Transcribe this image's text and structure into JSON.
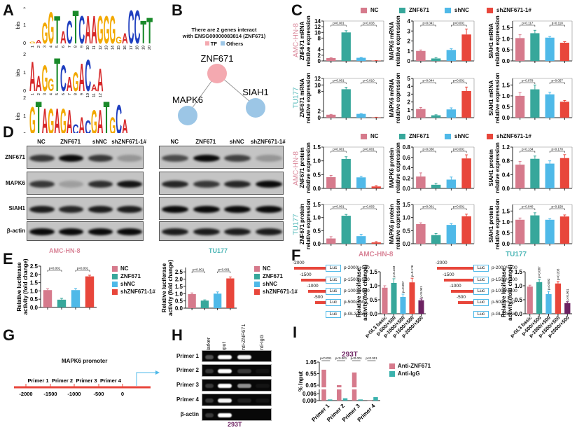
{
  "panels": {
    "a": "A",
    "b": "B",
    "c": "C",
    "d": "D",
    "e": "E",
    "f": "F",
    "g": "G",
    "h": "H",
    "i": "I"
  },
  "colors": {
    "NC": "#d67a8c",
    "ZNF671": "#37a79b",
    "shNC": "#4fb9e8",
    "shZNF671": "#e8463b",
    "purple": "#6d2262",
    "pink_text": "#d98598",
    "teal_text": "#4cb6b6",
    "igg": "#3bb2ad"
  },
  "motifs": [
    {
      "ylabel": "bits",
      "ticks": [
        "0",
        "1",
        "2"
      ],
      "letters": [
        "G",
        "A",
        "G",
        "G",
        "T",
        "A",
        "C",
        "T",
        "C",
        "A",
        "A",
        "G",
        "G",
        "G",
        "G",
        "A",
        "C",
        "C",
        "T",
        "T"
      ],
      "bits": [
        0.1,
        0.2,
        1.2,
        1.8,
        1.6,
        0.7,
        1.3,
        1.9,
        1.6,
        1.6,
        1.6,
        1.6,
        1.6,
        1.6,
        0.4,
        0.6,
        1.9,
        1.9,
        1.3,
        1.5
      ]
    },
    {
      "ylabel": "bits",
      "ticks": [
        "0",
        "1",
        "2"
      ],
      "letters": [
        "A",
        "A",
        "G",
        "G",
        "T",
        "C",
        "A",
        "G",
        "A",
        "C",
        "A",
        "A"
      ],
      "bits": [
        1.7,
        0.9,
        1.5,
        0.7,
        1.9,
        1.5,
        0.8,
        1.1,
        1.6,
        1.8,
        0.4,
        1.3
      ]
    },
    {
      "ylabel": "bits",
      "ticks": [
        "0",
        "1",
        "2"
      ],
      "letters": [
        "G",
        "T",
        "A",
        "G",
        "A",
        "G",
        "A",
        "C",
        "A",
        "C",
        "G",
        "A",
        "T",
        "G",
        "C",
        "A"
      ],
      "bits": [
        1.6,
        1.9,
        1.5,
        1.5,
        1.5,
        1.5,
        1.4,
        0.6,
        1.0,
        0.8,
        1.4,
        1.4,
        1.9,
        1.0,
        1.7,
        0.9
      ]
    }
  ],
  "network": {
    "title1": "There are 2 genes interact",
    "title2": "with ENSG00000083814 (ZNF671)",
    "legend_tf": "TF",
    "legend_others": "Others",
    "tf_color": "#f4a9b0",
    "other_color": "#9cc6e6",
    "nodes": [
      "ZNF671",
      "MAPK6",
      "SIAH1"
    ]
  },
  "groups": [
    "NC",
    "ZNF671",
    "shNC",
    "shZNF671-1#"
  ],
  "cell_lines": {
    "amc": "AMC-HN-8",
    "tu": "TU177"
  },
  "blot": {
    "lanes": [
      "NC",
      "ZNF671",
      "shNC",
      "shZNF671-1#"
    ],
    "rows": [
      "ZNF671",
      "MAPK6",
      "SIAH1",
      "β-actin"
    ],
    "amc_intensity": [
      [
        0.75,
        1.0,
        0.75,
        0.25
      ],
      [
        0.75,
        0.2,
        0.8,
        0.95
      ],
      [
        0.9,
        0.85,
        0.9,
        0.9
      ],
      [
        1.0,
        1.0,
        1.0,
        1.0
      ]
    ],
    "tu_intensity": [
      [
        0.65,
        1.0,
        0.7,
        0.25
      ],
      [
        0.85,
        0.75,
        0.85,
        1.0
      ],
      [
        1.0,
        1.0,
        1.0,
        1.0
      ],
      [
        0.9,
        0.9,
        0.9,
        0.9
      ]
    ]
  },
  "luc": {
    "label": "Luc",
    "constructs": [
      "p-2000/+500",
      "p-1500/+500",
      "p-1000/+500",
      "p-500/+500",
      "p-GL3 basic"
    ],
    "starts": [
      "-2000",
      "-1500",
      "-1000",
      "-500"
    ]
  },
  "promoter": {
    "title": "MAPK6 promoter",
    "primers": [
      "Primer 1",
      "Primer 2",
      "Primer 3",
      "Primer 4"
    ],
    "ticks": [
      "-2000",
      "-1500",
      "-1000",
      "-500",
      "0"
    ]
  },
  "gel": {
    "lanes": [
      "Marker",
      "Input",
      "Anti-ZNF671",
      "Anti-IgG"
    ],
    "rows": [
      "Primer 1",
      "Primer 2",
      "Primer 3",
      "Primer 4",
      "β-actin"
    ],
    "intensity": [
      [
        0.3,
        1.0,
        0.95,
        0.0
      ],
      [
        0.2,
        1.0,
        0.2,
        0.05
      ],
      [
        0.2,
        1.0,
        0.55,
        0.05
      ],
      [
        0.2,
        0.95,
        0.1,
        0.05
      ],
      [
        0.2,
        1.0,
        0.0,
        0.0
      ]
    ],
    "cell": "293T"
  },
  "chart_data": [
    {
      "id": "c1",
      "type": "bar",
      "ylabel": [
        "ZNF671 mRNA",
        "relative expression"
      ],
      "categories": [
        "NC",
        "ZNF671",
        "shNC",
        "shZNF671-1#"
      ],
      "values": [
        1.0,
        10.0,
        1.1,
        0.1
      ],
      "errors": [
        0.1,
        0.6,
        0.12,
        0.05
      ],
      "ylim": [
        0,
        14
      ],
      "ticks": [
        0,
        2,
        4,
        8,
        10,
        12,
        14
      ],
      "pvalues": [
        "p<0.001",
        "p=0.033"
      ]
    },
    {
      "id": "c2",
      "type": "bar",
      "ylabel": [
        "MAPK6 mRNA",
        "relative expression"
      ],
      "categories": [
        "NC",
        "ZNF671",
        "shNC",
        "shZNF671-1#"
      ],
      "values": [
        1.0,
        0.25,
        1.1,
        2.65
      ],
      "errors": [
        0.1,
        0.08,
        0.12,
        0.55
      ],
      "ylim": [
        0,
        4
      ],
      "ticks": [
        0,
        1,
        2,
        3,
        4
      ],
      "pvalues": [
        "p=0.041",
        "p<0.001"
      ]
    },
    {
      "id": "c3",
      "type": "bar",
      "ylabel": [
        "SIAH1 mRNA",
        "relative expression"
      ],
      "categories": [
        "NC",
        "ZNF671",
        "shNC",
        "shZNF671-1#"
      ],
      "values": [
        1.03,
        1.25,
        1.05,
        0.82
      ],
      "errors": [
        0.15,
        0.13,
        0.05,
        0.05
      ],
      "ylim": [
        0,
        1.8
      ],
      "ticks": [
        0.0,
        0.5,
        1.0,
        1.5
      ],
      "pvalues": [
        "p=0.117",
        "p=0.110"
      ]
    },
    {
      "id": "c4",
      "type": "bar",
      "ylabel": [
        "ZNF671 mRNA",
        "relative expression"
      ],
      "categories": [
        "NC",
        "ZNF671",
        "shNC",
        "shZNF671-1#"
      ],
      "values": [
        0.9,
        8.7,
        1.15,
        0.08
      ],
      "errors": [
        0.1,
        0.6,
        0.1,
        0.05
      ],
      "ylim": [
        0,
        12
      ],
      "ticks": [
        0,
        2,
        8,
        10,
        12
      ],
      "pvalues": [
        "p<0.001",
        "p=0.010"
      ]
    },
    {
      "id": "c5",
      "type": "bar",
      "ylabel": [
        "MAPK6 mRNA",
        "relative expression"
      ],
      "categories": [
        "NC",
        "ZNF671",
        "shNC",
        "shZNF671-1#"
      ],
      "values": [
        1.1,
        0.3,
        1.05,
        3.4
      ],
      "errors": [
        0.2,
        0.07,
        0.2,
        0.5
      ],
      "ylim": [
        0,
        5
      ],
      "ticks": [
        0,
        1,
        2,
        3,
        4,
        5
      ],
      "pvalues": [
        "p=0.044",
        "p<0.001"
      ]
    },
    {
      "id": "c6",
      "type": "bar",
      "ylabel": [
        "SIAH1 mRNA",
        "relative expression"
      ],
      "categories": [
        "NC",
        "ZNF671",
        "shNC",
        "shZNF671-1#"
      ],
      "values": [
        1.0,
        1.3,
        1.07,
        0.73
      ],
      "errors": [
        0.15,
        0.2,
        0.1,
        0.06
      ],
      "ylim": [
        0,
        1.8
      ],
      "ticks": [
        0.0,
        0.5,
        1.0,
        1.5
      ],
      "pvalues": [
        "p=0.079",
        "p=0.057"
      ]
    },
    {
      "id": "c7",
      "type": "bar",
      "ylabel": [
        "ZNF671 protein",
        "relative expression"
      ],
      "categories": [
        "NC",
        "ZNF671",
        "shNC",
        "shZNF671-1#"
      ],
      "values": [
        0.41,
        1.07,
        0.4,
        0.07
      ],
      "errors": [
        0.06,
        0.08,
        0.04,
        0.03
      ],
      "ylim": [
        0,
        1.5
      ],
      "ticks": [
        0.0,
        0.5,
        1.0,
        1.5
      ],
      "pvalues": [
        "p<0.001",
        "p<0.001"
      ]
    },
    {
      "id": "c8",
      "type": "bar",
      "ylabel": [
        "MAPK6 protein",
        "relative expression"
      ],
      "categories": [
        "NC",
        "ZNF671",
        "shNC",
        "shZNF671-1#"
      ],
      "values": [
        0.23,
        0.07,
        0.17,
        0.58
      ],
      "errors": [
        0.07,
        0.03,
        0.05,
        0.07
      ],
      "ylim": [
        0,
        0.8
      ],
      "ticks": [
        0.0,
        0.2,
        0.4,
        0.6,
        0.8
      ],
      "pvalues": [
        "p=0.030",
        "p<0.001"
      ]
    },
    {
      "id": "c9",
      "type": "bar",
      "ylabel": [
        "SIAH1 protein",
        "relative expression"
      ],
      "categories": [
        "NC",
        "ZNF671",
        "shNC",
        "shZNF671-1#"
      ],
      "values": [
        0.69,
        0.86,
        0.72,
        0.88
      ],
      "errors": [
        0.09,
        0.08,
        0.08,
        0.1
      ],
      "ylim": [
        0,
        1.2
      ],
      "ticks": [
        0.0,
        0.4,
        0.8,
        1.2
      ],
      "pvalues": [
        "p=0.134",
        "p=0.170"
      ]
    },
    {
      "id": "c10",
      "type": "bar",
      "ylabel": [
        "ZNF671 protein",
        "relative expression"
      ],
      "categories": [
        "NC",
        "ZNF671",
        "shNC",
        "shZNF671-1#"
      ],
      "values": [
        0.2,
        1.07,
        0.29,
        0.05
      ],
      "errors": [
        0.07,
        0.05,
        0.07,
        0.03
      ],
      "ylim": [
        0,
        1.5
      ],
      "ticks": [
        0.0,
        0.5,
        1.0,
        1.5
      ],
      "pvalues": [
        "p<0.001",
        "p=0.003"
      ]
    },
    {
      "id": "c11",
      "type": "bar",
      "ylabel": [
        "MAPK6 protein",
        "relative expression"
      ],
      "categories": [
        "NC",
        "ZNF671",
        "shNC",
        "shZNF671-1#"
      ],
      "values": [
        0.75,
        0.33,
        0.72,
        1.05
      ],
      "errors": [
        0.05,
        0.06,
        0.05,
        0.08
      ],
      "ylim": [
        0,
        1.5
      ],
      "ticks": [
        0.0,
        0.5,
        1.0,
        1.5
      ],
      "pvalues": [
        "p<0.001",
        "p<0.001"
      ]
    },
    {
      "id": "c12",
      "type": "bar",
      "ylabel": [
        "SIAH1 protein",
        "relative expression"
      ],
      "categories": [
        "NC",
        "ZNF671",
        "shNC",
        "shZNF671-1#"
      ],
      "values": [
        1.1,
        1.3,
        1.1,
        1.25
      ],
      "errors": [
        0.08,
        0.12,
        0.05,
        0.07
      ],
      "ylim": [
        0,
        1.8
      ],
      "ticks": [
        0.0,
        0.5,
        1.0,
        1.5
      ],
      "pvalues": [
        "p=0.040",
        "p=0.158"
      ]
    },
    {
      "id": "e1",
      "type": "bar",
      "title": "AMC-HN-8",
      "ylabel": [
        "Relative luciferase",
        "activity (fold change)"
      ],
      "categories": [
        "NC",
        "ZNF671",
        "shNC",
        "shZNF671-1#"
      ],
      "values": [
        1.05,
        0.47,
        1.05,
        1.88
      ],
      "errors": [
        0.08,
        0.08,
        0.1,
        0.07
      ],
      "ylim": [
        0,
        2.5
      ],
      "ticks": [
        0.0,
        0.5,
        1.0,
        1.5,
        2.0,
        2.5
      ],
      "pvalues": [
        "p<0.001",
        "p<0.001"
      ]
    },
    {
      "id": "e2",
      "type": "bar",
      "title": "TU177",
      "ylabel": [
        "Relative luciferase",
        "activity (fold change)"
      ],
      "categories": [
        "NC",
        "ZNF671",
        "shNC",
        "shZNF671-1#"
      ],
      "values": [
        0.97,
        0.52,
        1.0,
        2.05
      ],
      "errors": [
        0.08,
        0.05,
        0.12,
        0.1
      ],
      "ylim": [
        0,
        2.8
      ],
      "ticks": [
        0.0,
        0.5,
        1.0,
        1.5,
        2.0,
        2.5
      ],
      "pvalues": [
        "p<0.001",
        "p<0.001"
      ]
    },
    {
      "id": "f1",
      "type": "bar",
      "title": "AMC-HN-8",
      "ylabel": [
        "Relative luciferase",
        "activity (fold change)"
      ],
      "categories": [
        "p-GL3 basic",
        "p-500/+500",
        "p-1000/+500",
        "p-1500/+500",
        "p-2000/+500"
      ],
      "values": [
        0.93,
        1.1,
        0.6,
        1.12,
        0.48
      ],
      "errors": [
        0.07,
        0.15,
        0.1,
        0.15,
        0.05
      ],
      "ylim": [
        0,
        1.5
      ],
      "ticks": [
        0.0,
        0.5,
        1.0,
        1.5
      ],
      "bar_pvalues": [
        "",
        "p=0.333",
        "p=0.007",
        "p=0.176",
        "p<0.001"
      ]
    },
    {
      "id": "f2",
      "type": "bar",
      "title": "TU177",
      "ylabel": [
        "Relative luciferase",
        "activity (fold change)"
      ],
      "categories": [
        "p-GL3 basic",
        "p-500/+500",
        "p-1000/+500",
        "p-1500/+500",
        "p-2000/+500"
      ],
      "values": [
        0.97,
        1.13,
        0.7,
        1.08,
        0.38
      ],
      "errors": [
        0.05,
        0.1,
        0.1,
        0.07,
        0.05
      ],
      "ylim": [
        0,
        1.5
      ],
      "ticks": [
        0.0,
        0.5,
        1.0,
        1.5
      ],
      "bar_pvalues": [
        "",
        "p=0.087",
        "p=0.002",
        "p=0.203",
        "p<0.001"
      ]
    },
    {
      "id": "i1",
      "type": "bar",
      "title": "293T",
      "ylabel": [
        "% Input"
      ],
      "categories": [
        "Primer 1",
        "Primer 2",
        "Primer 3",
        "Primer 4"
      ],
      "series": [
        {
          "name": "Anti-ZNF671",
          "values": [
            0.72,
            0.05,
            0.6,
            0.0
          ]
        },
        {
          "name": "Anti-IgG",
          "values": [
            0.001,
            0.002,
            0.001,
            0.003
          ]
        }
      ],
      "ylim": [
        0,
        1.05
      ],
      "ticks": [
        0.0,
        0.006,
        0.05,
        0.55,
        1.05
      ],
      "tick_labels": [
        "0.000",
        "0.006",
        "0.05",
        "0.55",
        "1.05"
      ],
      "pvalues": [
        "p<0.001",
        "p<0.001",
        "p<0.001",
        "p<0.001"
      ]
    }
  ]
}
